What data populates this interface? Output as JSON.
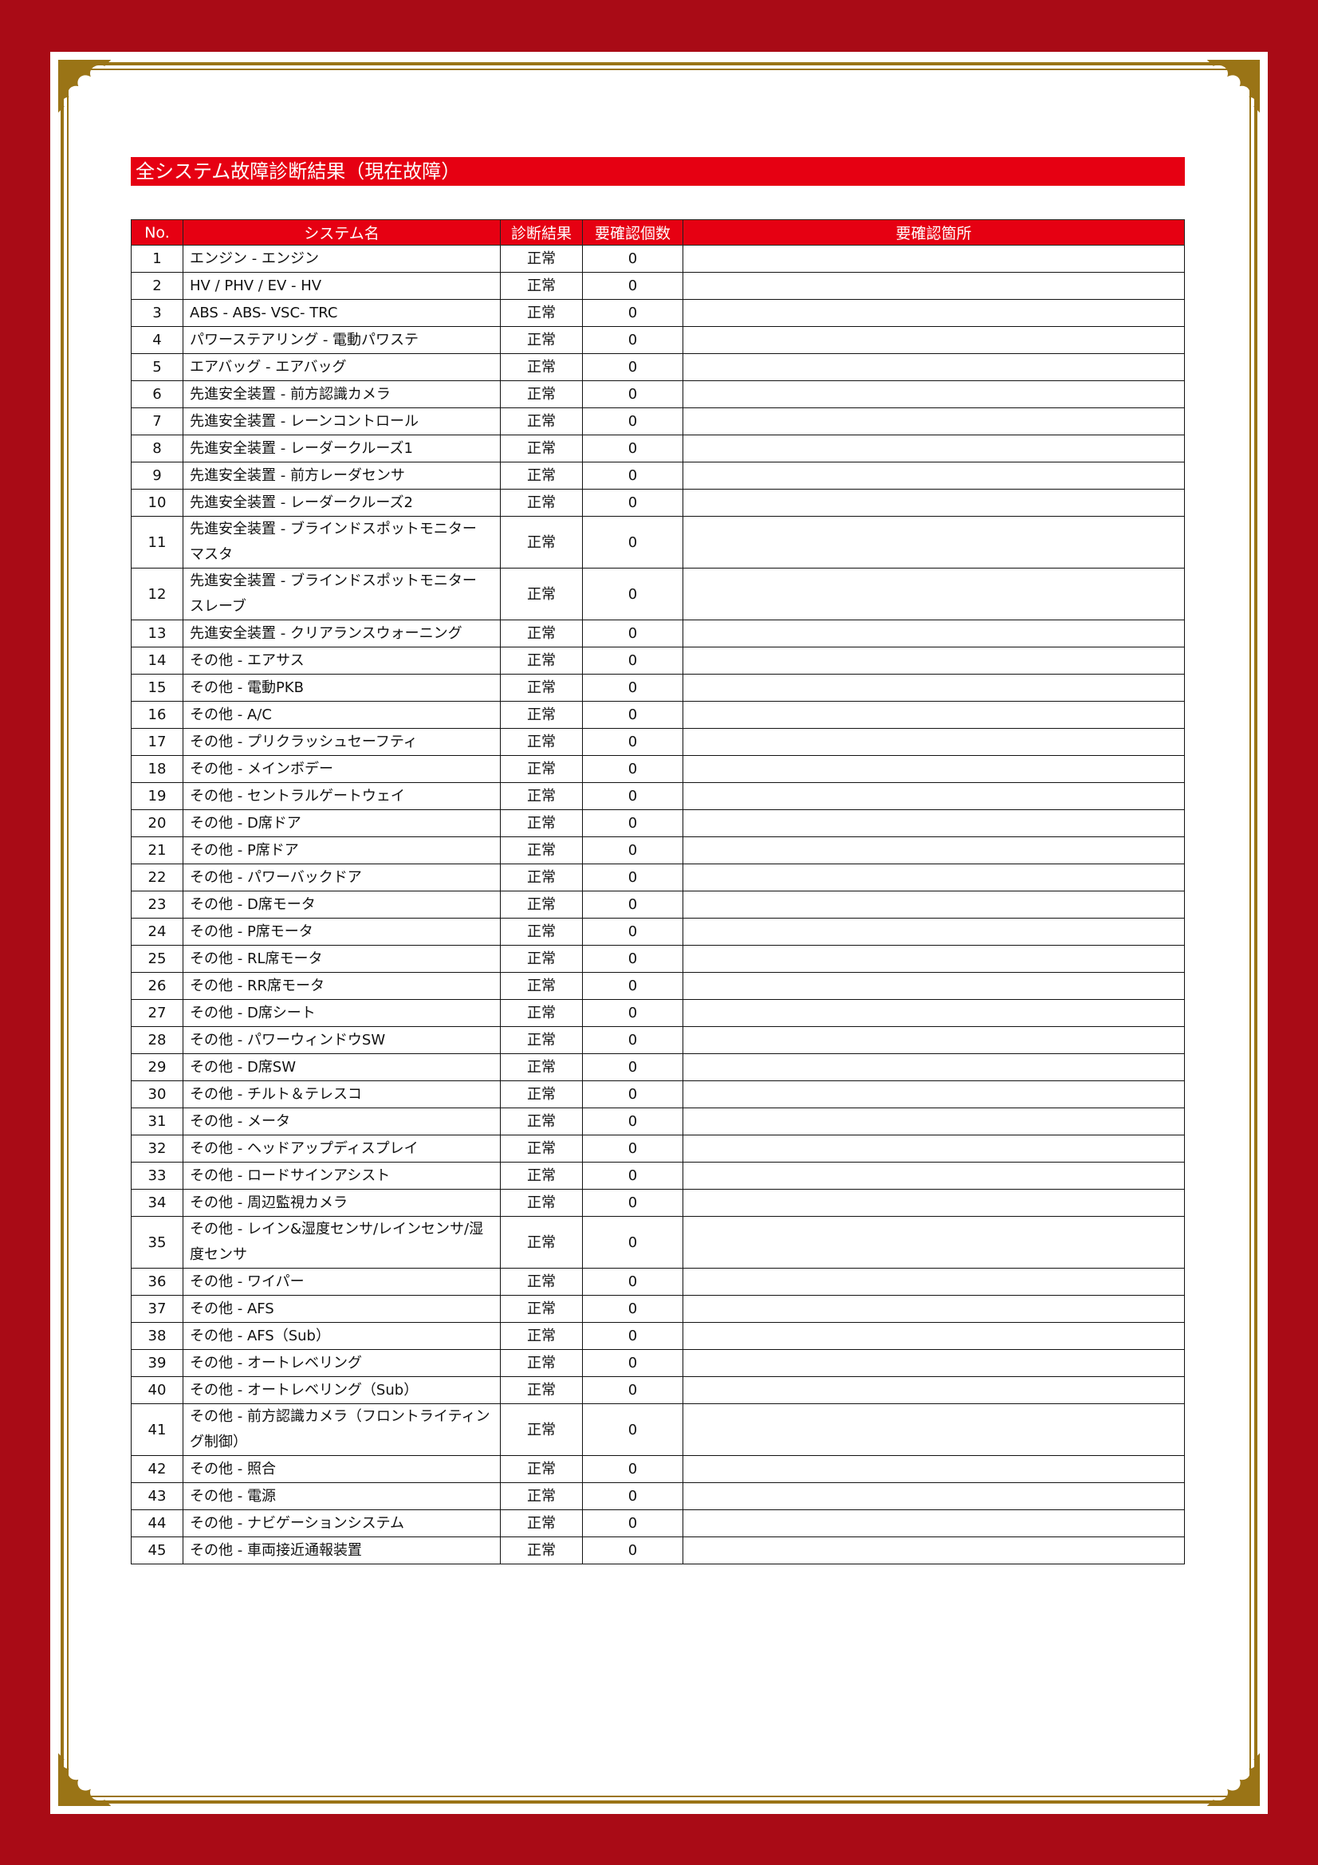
{
  "colors": {
    "frame": "#a90b16",
    "gold": "#9a7416",
    "header": "#e60012"
  },
  "title": "全システム故障診断結果（現在故障）",
  "columns": [
    "No.",
    "システム名",
    "診断結果",
    "要確認個数",
    "要確認箇所"
  ],
  "rows": [
    [
      "1",
      "エンジン - エンジン",
      "正常",
      "0",
      ""
    ],
    [
      "2",
      "HV / PHV / EV - HV",
      "正常",
      "0",
      ""
    ],
    [
      "3",
      "ABS - ABS- VSC- TRC",
      "正常",
      "0",
      ""
    ],
    [
      "4",
      "パワーステアリング - 電動パワステ",
      "正常",
      "0",
      ""
    ],
    [
      "5",
      "エアバッグ - エアバッグ",
      "正常",
      "0",
      ""
    ],
    [
      "6",
      "先進安全装置 - 前方認識カメラ",
      "正常",
      "0",
      ""
    ],
    [
      "7",
      "先進安全装置 - レーンコントロール",
      "正常",
      "0",
      ""
    ],
    [
      "8",
      "先進安全装置 - レーダークルーズ1",
      "正常",
      "0",
      ""
    ],
    [
      "9",
      "先進安全装置 - 前方レーダセンサ",
      "正常",
      "0",
      ""
    ],
    [
      "10",
      "先進安全装置 - レーダークルーズ2",
      "正常",
      "0",
      ""
    ],
    [
      "11",
      "先進安全装置 - ブラインドスポットモニター マスタ",
      "正常",
      "0",
      ""
    ],
    [
      "12",
      "先進安全装置 - ブラインドスポットモニター スレーブ",
      "正常",
      "0",
      ""
    ],
    [
      "13",
      "先進安全装置 - クリアランスウォーニング",
      "正常",
      "0",
      ""
    ],
    [
      "14",
      "その他 - エアサス",
      "正常",
      "0",
      ""
    ],
    [
      "15",
      "その他 - 電動PKB",
      "正常",
      "0",
      ""
    ],
    [
      "16",
      "その他 - A/C",
      "正常",
      "0",
      ""
    ],
    [
      "17",
      "その他 - プリクラッシュセーフティ",
      "正常",
      "0",
      ""
    ],
    [
      "18",
      "その他 - メインボデー",
      "正常",
      "0",
      ""
    ],
    [
      "19",
      "その他 - セントラルゲートウェイ",
      "正常",
      "0",
      ""
    ],
    [
      "20",
      "その他 - D席ドア",
      "正常",
      "0",
      ""
    ],
    [
      "21",
      "その他 - P席ドア",
      "正常",
      "0",
      ""
    ],
    [
      "22",
      "その他 - パワーバックドア",
      "正常",
      "0",
      ""
    ],
    [
      "23",
      "その他 - D席モータ",
      "正常",
      "0",
      ""
    ],
    [
      "24",
      "その他 - P席モータ",
      "正常",
      "0",
      ""
    ],
    [
      "25",
      "その他 - RL席モータ",
      "正常",
      "0",
      ""
    ],
    [
      "26",
      "その他 - RR席モータ",
      "正常",
      "0",
      ""
    ],
    [
      "27",
      "その他 - D席シート",
      "正常",
      "0",
      ""
    ],
    [
      "28",
      "その他 - パワーウィンドウSW",
      "正常",
      "0",
      ""
    ],
    [
      "29",
      "その他 - D席SW",
      "正常",
      "0",
      ""
    ],
    [
      "30",
      "その他 - チルト＆テレスコ",
      "正常",
      "0",
      ""
    ],
    [
      "31",
      "その他 - メータ",
      "正常",
      "0",
      ""
    ],
    [
      "32",
      "その他 - ヘッドアップディスプレイ",
      "正常",
      "0",
      ""
    ],
    [
      "33",
      "その他 - ロードサインアシスト",
      "正常",
      "0",
      ""
    ],
    [
      "34",
      "その他 - 周辺監視カメラ",
      "正常",
      "0",
      ""
    ],
    [
      "35",
      "その他 - レイン&湿度センサ/レインセンサ/湿度センサ",
      "正常",
      "0",
      ""
    ],
    [
      "36",
      "その他 - ワイパー",
      "正常",
      "0",
      ""
    ],
    [
      "37",
      "その他 - AFS",
      "正常",
      "0",
      ""
    ],
    [
      "38",
      "その他 - AFS（Sub）",
      "正常",
      "0",
      ""
    ],
    [
      "39",
      "その他 - オートレベリング",
      "正常",
      "0",
      ""
    ],
    [
      "40",
      "その他 - オートレベリング（Sub）",
      "正常",
      "0",
      ""
    ],
    [
      "41",
      "その他 - 前方認識カメラ（フロントライティング制御）",
      "正常",
      "0",
      ""
    ],
    [
      "42",
      "その他 - 照合",
      "正常",
      "0",
      ""
    ],
    [
      "43",
      "その他 - 電源",
      "正常",
      "0",
      ""
    ],
    [
      "44",
      "その他 - ナビゲーションシステム",
      "正常",
      "0",
      ""
    ],
    [
      "45",
      "その他 - 車両接近通報装置",
      "正常",
      "0",
      ""
    ]
  ]
}
